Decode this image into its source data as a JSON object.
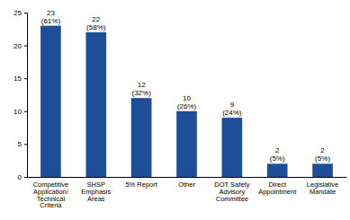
{
  "chart_data": {
    "type": "bar",
    "categories": [
      "Competitive\nApplication/\nTechnical\nCriteria",
      "SHSP\nEmphasis\nAreas",
      "5% Report",
      "Other",
      "DOT Safety\nAdvisory\nCommittee",
      "Direct\nAppointment",
      "Legislative\nMandate"
    ],
    "values": [
      23,
      22,
      12,
      10,
      9,
      2,
      2
    ],
    "value_labels": [
      "23\n(61%)",
      "22\n(58%)",
      "12\n(32%)",
      "10\n(26%)",
      "9\n(24%)",
      "2\n(5%)",
      "2\n(5%)"
    ],
    "color": "#1f4e99",
    "ylim": [
      0,
      25
    ],
    "yticks": [
      0,
      5,
      10,
      15,
      20,
      25
    ],
    "grid": false,
    "data_labels": true
  }
}
